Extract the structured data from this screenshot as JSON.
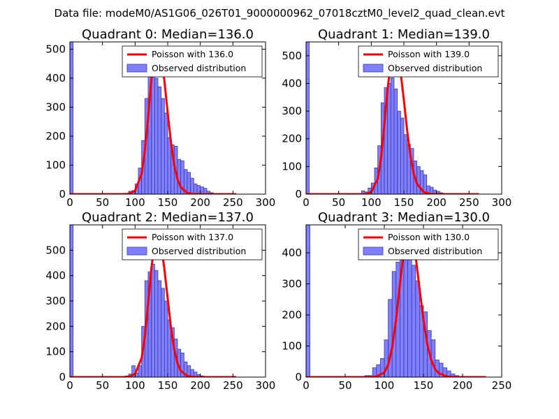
{
  "figure": {
    "suptitle": "Data file: modeM0/AS1G06_026T01_9000000962_07018cztM0_level2_quad_clean.evt"
  },
  "colors": {
    "hist_fill": "#7f7fff",
    "hist_edge": "#3a3a9f",
    "poisson": "#ff0000",
    "axes": "#000000"
  },
  "chart_data": [
    {
      "type": "bar",
      "title": "Quadrant 0: Median=136.0",
      "legend": {
        "placement": "top-right",
        "poisson_label": "Poisson with 136.0",
        "observed_label": "Observed distribution"
      },
      "xlim": [
        0,
        300
      ],
      "ylim": [
        0,
        525
      ],
      "xticks": [
        0,
        50,
        100,
        150,
        200,
        250,
        300
      ],
      "yticks": [
        0,
        100,
        200,
        300,
        400,
        500
      ],
      "bin_width": 5,
      "zero_bin": {
        "x": 0,
        "value": 525
      },
      "bins_start": 80,
      "values": [
        2,
        0,
        10,
        12,
        35,
        90,
        185,
        330,
        410,
        420,
        400,
        370,
        330,
        280,
        195,
        170,
        165,
        120,
        115,
        85,
        75,
        55,
        35,
        30,
        25,
        20,
        10,
        5,
        2,
        1
      ],
      "poisson_mean": 136.0,
      "poisson_x": [
        0,
        80,
        90,
        100,
        110,
        115,
        120,
        125,
        130,
        135,
        140,
        145,
        150,
        155,
        160,
        165,
        170,
        180,
        190,
        200,
        255
      ],
      "poisson_y": [
        0,
        0,
        1,
        12,
        70,
        150,
        265,
        395,
        480,
        505,
        470,
        390,
        280,
        180,
        100,
        52,
        24,
        4,
        1,
        0,
        0
      ]
    },
    {
      "type": "bar",
      "title": "Quadrant 1: Median=139.0",
      "legend": {
        "placement": "top-right",
        "poisson_label": "Poisson with 139.0",
        "observed_label": "Observed distribution"
      },
      "xlim": [
        0,
        300
      ],
      "ylim": [
        0,
        550
      ],
      "xticks": [
        0,
        50,
        100,
        150,
        200,
        250,
        300
      ],
      "yticks": [
        0,
        100,
        200,
        300,
        400,
        500
      ],
      "bin_width": 5,
      "zero_bin": {
        "x": 0,
        "value": 550
      },
      "bins_start": 85,
      "values": [
        12,
        8,
        22,
        40,
        95,
        175,
        330,
        385,
        400,
        420,
        380,
        300,
        275,
        215,
        180,
        165,
        120,
        100,
        85,
        70,
        30,
        25,
        15,
        10,
        5,
        2
      ],
      "poisson_mean": 139.0,
      "poisson_x": [
        0,
        90,
        100,
        110,
        115,
        120,
        125,
        130,
        135,
        140,
        145,
        150,
        155,
        160,
        165,
        170,
        180,
        190,
        200,
        265
      ],
      "poisson_y": [
        0,
        0,
        8,
        55,
        130,
        250,
        380,
        470,
        520,
        505,
        440,
        340,
        230,
        140,
        75,
        38,
        8,
        1,
        0,
        0
      ]
    },
    {
      "type": "bar",
      "title": "Quadrant 2: Median=137.0",
      "legend": {
        "placement": "top-right",
        "poisson_label": "Poisson with 137.0",
        "observed_label": "Observed distribution"
      },
      "xlim": [
        0,
        300
      ],
      "ylim": [
        0,
        600
      ],
      "xticks": [
        0,
        50,
        100,
        150,
        200,
        250,
        300
      ],
      "yticks": [
        0,
        100,
        200,
        300,
        400,
        500
      ],
      "bin_width": 5,
      "zero_bin": {
        "x": 0,
        "value": 600
      },
      "bins_start": 80,
      "values": [
        3,
        5,
        12,
        45,
        15,
        45,
        200,
        380,
        415,
        445,
        420,
        380,
        350,
        300,
        225,
        195,
        150,
        110,
        95,
        60,
        45,
        30,
        20,
        10,
        5,
        2
      ],
      "poisson_mean": 137.0,
      "poisson_x": [
        0,
        80,
        90,
        100,
        110,
        115,
        120,
        125,
        130,
        135,
        140,
        145,
        150,
        155,
        160,
        165,
        170,
        180,
        190,
        200,
        255
      ],
      "poisson_y": [
        0,
        0,
        1,
        12,
        75,
        160,
        290,
        430,
        530,
        565,
        520,
        425,
        310,
        195,
        110,
        55,
        25,
        4,
        1,
        0,
        0
      ]
    },
    {
      "type": "bar",
      "title": "Quadrant 3: Median=130.0",
      "legend": {
        "placement": "top-right",
        "poisson_label": "Poisson with 130.0",
        "observed_label": "Observed distribution"
      },
      "xlim": [
        0,
        250
      ],
      "ylim": [
        0,
        490
      ],
      "xticks": [
        0,
        50,
        100,
        150,
        200,
        250
      ],
      "yticks": [
        0,
        100,
        200,
        300,
        400
      ],
      "bin_width": 5,
      "zero_bin": {
        "x": 0,
        "value": 490
      },
      "bins_start": 75,
      "values": [
        5,
        5,
        30,
        40,
        60,
        120,
        250,
        340,
        370,
        440,
        460,
        450,
        360,
        310,
        230,
        210,
        150,
        120,
        55,
        45,
        30,
        20,
        10,
        5,
        2
      ],
      "poisson_mean": 130.0,
      "poisson_x": [
        0,
        80,
        90,
        100,
        105,
        110,
        115,
        120,
        125,
        130,
        135,
        140,
        145,
        150,
        155,
        160,
        165,
        170,
        180,
        190,
        230
      ],
      "poisson_y": [
        0,
        0,
        2,
        15,
        40,
        95,
        185,
        300,
        410,
        465,
        455,
        390,
        285,
        185,
        105,
        55,
        25,
        12,
        2,
        0,
        0
      ]
    }
  ]
}
